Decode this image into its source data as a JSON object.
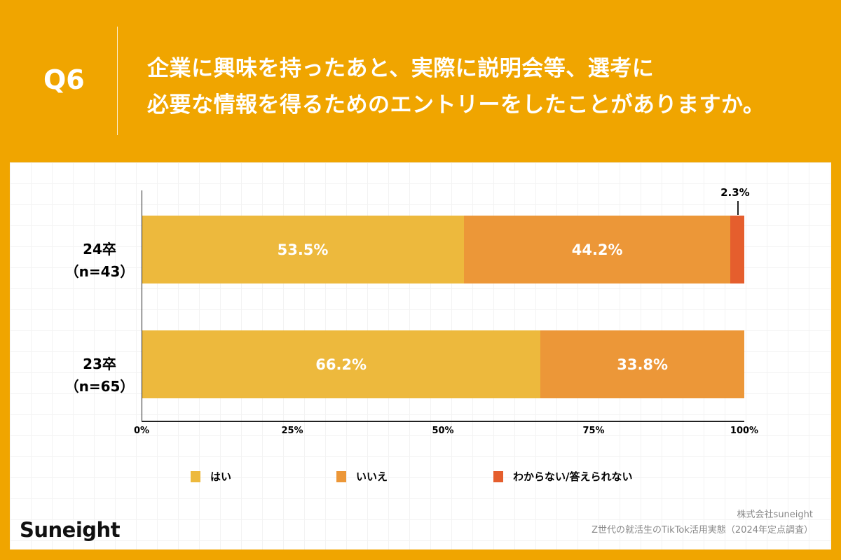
{
  "header": {
    "q": "Q6",
    "title_line1": "企業に興味を持ったあと、実際に説明会等、選考に",
    "title_line2": "必要な情報を得るためのエントリーをしたことがありますか。"
  },
  "chart_data": {
    "type": "bar",
    "orientation": "horizontal",
    "stacked": true,
    "categories": [
      {
        "label": "24卒",
        "n": "（n=43）"
      },
      {
        "label": "23卒",
        "n": "（n=65）"
      }
    ],
    "series": [
      {
        "name": "はい",
        "color": "#EDB93D",
        "values": [
          53.5,
          66.2
        ]
      },
      {
        "name": "いいえ",
        "color": "#EC9738",
        "values": [
          44.2,
          33.8
        ]
      },
      {
        "name": "わからない/答えられない",
        "color": "#E55E2D",
        "values": [
          2.3,
          0
        ]
      }
    ],
    "data_labels": [
      [
        "53.5%",
        "44.2%",
        "2.3%"
      ],
      [
        "66.2%",
        "33.8%",
        ""
      ]
    ],
    "xticks": [
      "0%",
      "25%",
      "50%",
      "75%",
      "100%"
    ],
    "xlim": [
      0,
      100
    ],
    "legend": "bottom",
    "grid": false
  },
  "footer": {
    "logo": "Suneight",
    "company": "株式会社suneight",
    "source": "Z世代の就活生のTikTok活用実態（2024年定点調査）"
  },
  "colors": {
    "background": "#F0A500"
  }
}
